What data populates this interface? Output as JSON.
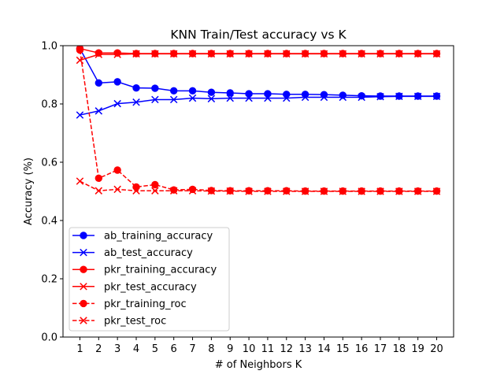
{
  "chart_data": {
    "type": "line",
    "title": "KNN Train/Test accuracy vs K",
    "xlabel": "# of Neighbors K",
    "ylabel": "Accuracy (%)",
    "ylim": [
      0.0,
      1.0
    ],
    "yticks": [
      "0.0",
      "0.2",
      "0.4",
      "0.6",
      "0.8",
      "1.0"
    ],
    "x": [
      1,
      2,
      3,
      4,
      5,
      6,
      7,
      8,
      9,
      10,
      11,
      12,
      13,
      14,
      15,
      16,
      17,
      18,
      19,
      20
    ],
    "grid": false,
    "legend_position": "lower-left",
    "series": [
      {
        "name": "ab_training_accuracy",
        "color": "#0000ff",
        "marker": "circle",
        "linestyle": "solid",
        "values": [
          0.99,
          0.872,
          0.876,
          0.855,
          0.854,
          0.845,
          0.845,
          0.84,
          0.838,
          0.835,
          0.835,
          0.833,
          0.833,
          0.832,
          0.83,
          0.828,
          0.827,
          0.827,
          0.827,
          0.827
        ]
      },
      {
        "name": "ab_test_accuracy",
        "color": "#0000ff",
        "marker": "x",
        "linestyle": "solid",
        "values": [
          0.762,
          0.776,
          0.801,
          0.806,
          0.815,
          0.815,
          0.82,
          0.818,
          0.82,
          0.82,
          0.82,
          0.82,
          0.823,
          0.823,
          0.823,
          0.823,
          0.825,
          0.826,
          0.826,
          0.826
        ]
      },
      {
        "name": "pkr_training_accuracy",
        "color": "#ff0000",
        "marker": "circle",
        "linestyle": "solid",
        "values": [
          0.99,
          0.975,
          0.975,
          0.973,
          0.973,
          0.973,
          0.973,
          0.973,
          0.973,
          0.973,
          0.973,
          0.973,
          0.973,
          0.973,
          0.973,
          0.973,
          0.973,
          0.973,
          0.973,
          0.973
        ]
      },
      {
        "name": "pkr_test_accuracy",
        "color": "#ff0000",
        "marker": "x",
        "linestyle": "solid",
        "values": [
          0.95,
          0.97,
          0.97,
          0.972,
          0.972,
          0.972,
          0.972,
          0.972,
          0.972,
          0.972,
          0.972,
          0.972,
          0.972,
          0.972,
          0.972,
          0.972,
          0.972,
          0.972,
          0.972,
          0.972
        ]
      },
      {
        "name": "pkr_training_roc",
        "color": "#ff0000",
        "marker": "circle",
        "linestyle": "dashed",
        "values": [
          0.985,
          0.545,
          0.573,
          0.515,
          0.523,
          0.505,
          0.507,
          0.503,
          0.502,
          0.502,
          0.502,
          0.502,
          0.501,
          0.501,
          0.501,
          0.501,
          0.501,
          0.501,
          0.501,
          0.501
        ]
      },
      {
        "name": "pkr_test_roc",
        "color": "#ff0000",
        "marker": "x",
        "linestyle": "dashed",
        "values": [
          0.535,
          0.502,
          0.507,
          0.502,
          0.502,
          0.502,
          0.502,
          0.501,
          0.501,
          0.5,
          0.5,
          0.5,
          0.5,
          0.5,
          0.5,
          0.5,
          0.5,
          0.5,
          0.5,
          0.5
        ]
      }
    ]
  }
}
